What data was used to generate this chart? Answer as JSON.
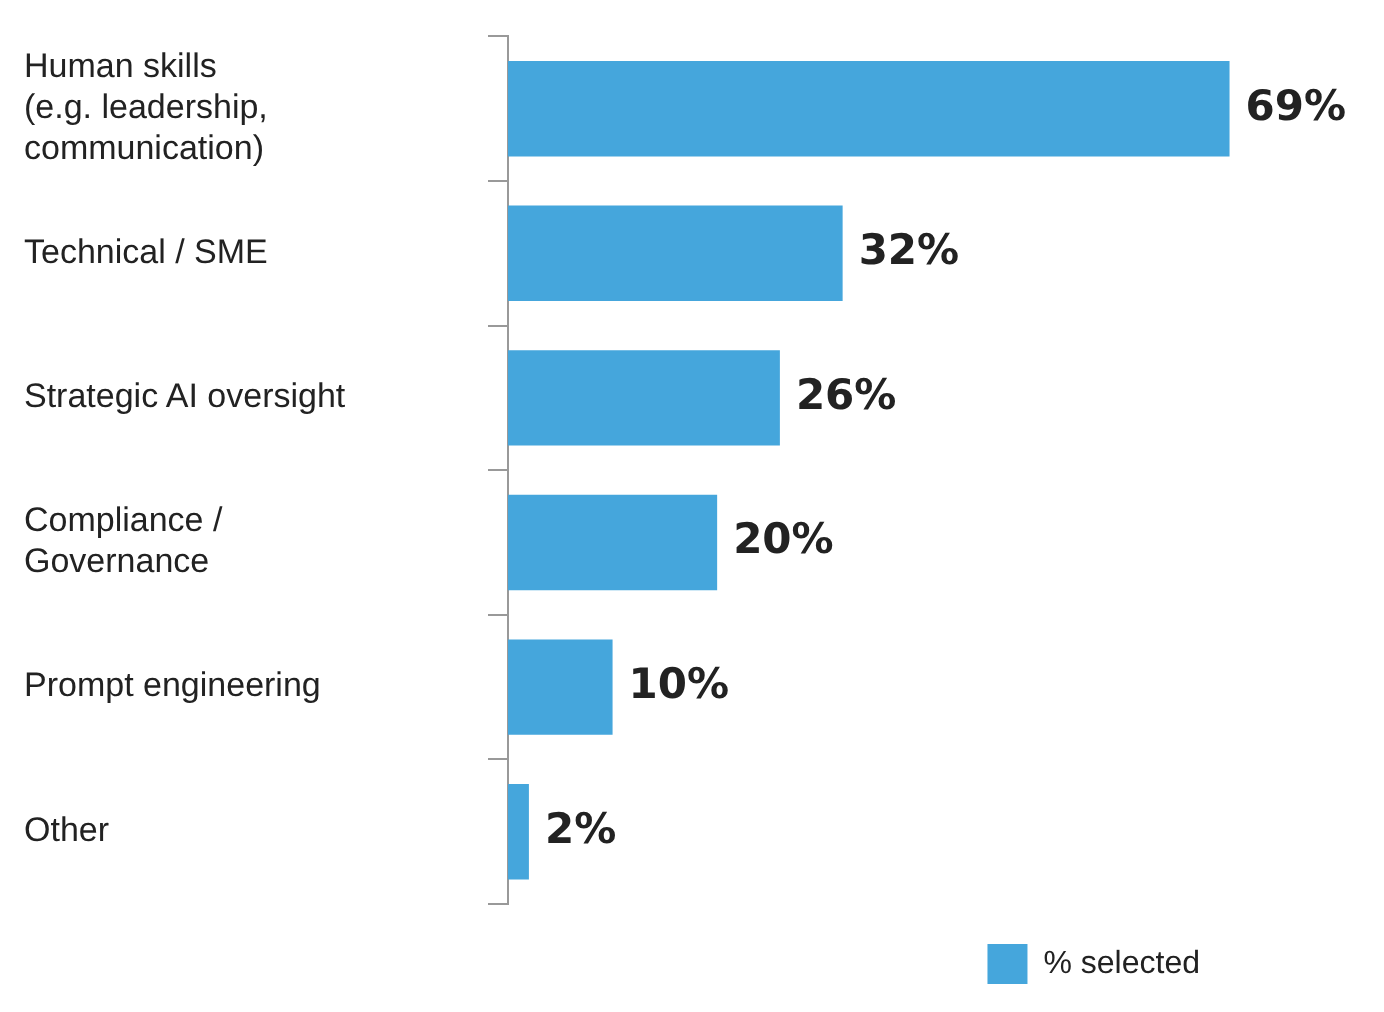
{
  "chart_data": {
    "type": "bar",
    "orientation": "horizontal",
    "categories": [
      "Human skills\n(e.g. leadership,\ncommunication)",
      "Technical / SME",
      "Strategic AI oversight",
      "Compliance /\nGovernance",
      "Prompt engineering",
      "Other"
    ],
    "series": [
      {
        "name": "% selected",
        "color": "#45a6dc",
        "values": [
          69,
          32,
          26,
          20,
          10,
          2
        ],
        "value_labels": [
          "69%",
          "32%",
          "26%",
          "20%",
          "10%",
          "2%"
        ]
      }
    ],
    "tick_labels": "y",
    "legend": "bottom right"
  }
}
